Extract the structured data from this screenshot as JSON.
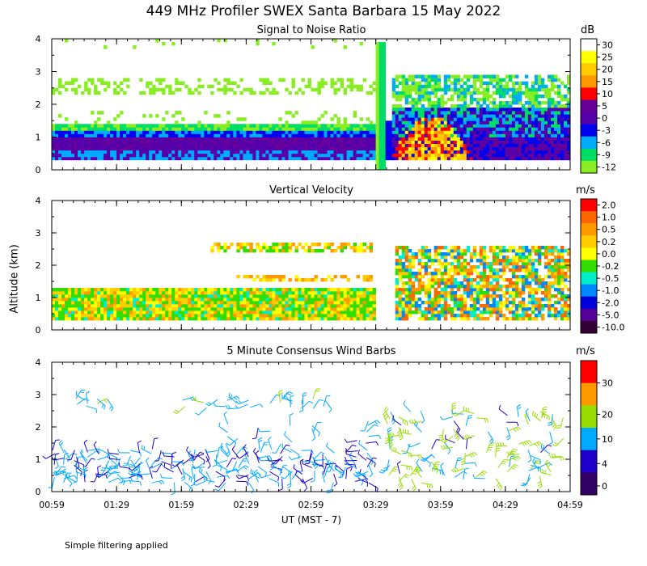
{
  "title": "449 MHz Profiler SWEX Santa Barbara 15 May 2022",
  "footnote": "Simple filtering applied",
  "xaxis": {
    "label": "UT  (MST - 7)",
    "ticks": [
      "00:59",
      "01:29",
      "01:59",
      "02:29",
      "02:59",
      "03:29",
      "03:59",
      "04:29",
      "04:59"
    ]
  },
  "yaxis": {
    "label": "Altitude (km)",
    "ticks": [
      "0",
      "1",
      "2",
      "3",
      "4"
    ]
  },
  "chart_data": [
    {
      "type": "heatmap",
      "title": "Signal to Noise Ratio",
      "unit": "dB",
      "x_range_hours_ut": [
        0.983,
        4.983
      ],
      "ylim": [
        0,
        4
      ],
      "colorbar_ticks": [
        "30",
        "25",
        "20",
        "15",
        "10",
        "5",
        "0",
        "-3",
        "-6",
        "-9",
        "-12"
      ],
      "colors": [
        "#ffffff",
        "#ffff00",
        "#ffcc00",
        "#ff9900",
        "#ff0000",
        "#660099",
        "#5500aa",
        "#0000ee",
        "#00aaff",
        "#00dd66",
        "#88ee22"
      ]
    },
    {
      "type": "heatmap",
      "title": "Vertical Velocity",
      "unit": "m/s",
      "x_range_hours_ut": [
        0.983,
        4.983
      ],
      "ylim": [
        0,
        4
      ],
      "colorbar_ticks": [
        "2.0",
        "1.0",
        "0.5",
        "0.2",
        "0.0",
        "-0.2",
        "-0.5",
        "-1.0",
        "-2.0",
        "-5.0",
        "-10.0"
      ],
      "colors": [
        "#ff0000",
        "#ff6600",
        "#ff9900",
        "#ffcc00",
        "#ffff00",
        "#33dd00",
        "#00eecc",
        "#0088ff",
        "#0000dd",
        "#550099",
        "#330033"
      ]
    },
    {
      "type": "scatter",
      "title": "5 Minute Consensus Wind Barbs",
      "unit": "m/s",
      "x_range_hours_ut": [
        0.983,
        4.983
      ],
      "ylim": [
        0,
        4
      ],
      "colorbar_ticks": [
        "30",
        "20",
        "10",
        "4",
        "0"
      ],
      "colorbar_values": [
        30,
        20,
        10,
        4,
        0
      ],
      "colors": [
        "#ff0000",
        "#ff9900",
        "#99dd00",
        "#00aaff",
        "#2200cc",
        "#330066"
      ]
    }
  ]
}
